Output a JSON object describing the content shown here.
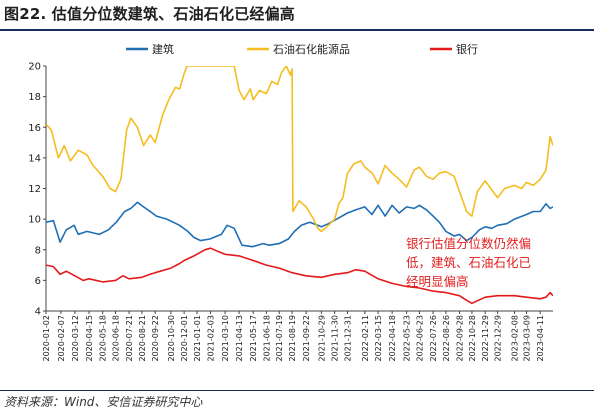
{
  "title": "图22. 估值分位数建筑、石油石化已经偏高",
  "source": "资料来源：Wind、安信证券研究中心",
  "colors": {
    "jianzhu": "#1f6fb5",
    "shiyou": "#f5bd1f",
    "yinhang": "#e31a1c",
    "rule": "#1a2a5a"
  },
  "chart_data": {
    "type": "line",
    "title": "",
    "xlabel": "",
    "ylabel": "",
    "ylim": [
      4,
      20
    ],
    "yticks": [
      "4",
      "6",
      "8",
      "10",
      "12",
      "14",
      "16",
      "18",
      "20"
    ],
    "yticks_num": [
      4,
      6,
      8,
      10,
      12,
      14,
      16,
      18,
      20
    ],
    "grid": false,
    "legend_position": "top",
    "x_start": "2020-01-02",
    "x_end": "2023-05-12",
    "xticks": [
      "2020-01-02",
      "2020-02-07",
      "2020-03-12",
      "2020-04-15",
      "2020-05-18",
      "2020-06-18",
      "2020-07-21",
      "2020-08-21",
      "2020-09-22",
      "2020-10-30",
      "2020-12-01",
      "2021-01-01",
      "2021-02-03",
      "2021-03-10",
      "2021-04-13",
      "2021-05-17",
      "2021-06-18",
      "2021-07-19",
      "2021-08-19",
      "2021-09-22",
      "2021-10-29",
      "2021-11-30",
      "2021-12-31",
      "2022-02-11",
      "2022-03-15",
      "2022-04-18",
      "2022-05-23",
      "2022-06-23",
      "2022-07-26",
      "2022-08-26",
      "2022-09-28",
      "2022-10-28",
      "2022-11-29",
      "2022-12-29",
      "2023-02-08",
      "2023-03-09",
      "2023-04-11"
    ],
    "annotation": [
      "银行估值分位数仍然偏",
      "低，建筑、石油石化已",
      "经明显偏高"
    ],
    "series": [
      {
        "name": "建筑",
        "color": "#1f6fb5",
        "points": [
          [
            "2020-01-02",
            9.8
          ],
          [
            "2020-01-20",
            9.9
          ],
          [
            "2020-02-05",
            8.5
          ],
          [
            "2020-02-20",
            9.3
          ],
          [
            "2020-03-10",
            9.6
          ],
          [
            "2020-03-20",
            9.0
          ],
          [
            "2020-04-10",
            9.2
          ],
          [
            "2020-05-10",
            9.0
          ],
          [
            "2020-06-01",
            9.3
          ],
          [
            "2020-06-20",
            9.8
          ],
          [
            "2020-07-10",
            10.5
          ],
          [
            "2020-07-25",
            10.7
          ],
          [
            "2020-08-10",
            11.1
          ],
          [
            "2020-08-25",
            10.8
          ],
          [
            "2020-09-10",
            10.5
          ],
          [
            "2020-09-25",
            10.2
          ],
          [
            "2020-10-20",
            10.0
          ],
          [
            "2020-11-20",
            9.6
          ],
          [
            "2020-12-10",
            9.2
          ],
          [
            "2020-12-25",
            8.8
          ],
          [
            "2021-01-10",
            8.6
          ],
          [
            "2021-02-01",
            8.7
          ],
          [
            "2021-03-01",
            9.0
          ],
          [
            "2021-03-15",
            9.6
          ],
          [
            "2021-04-01",
            9.4
          ],
          [
            "2021-04-20",
            8.3
          ],
          [
            "2021-05-15",
            8.2
          ],
          [
            "2021-06-10",
            8.4
          ],
          [
            "2021-06-25",
            8.3
          ],
          [
            "2021-07-19",
            8.4
          ],
          [
            "2021-08-10",
            8.7
          ],
          [
            "2021-08-25",
            9.2
          ],
          [
            "2021-09-10",
            9.6
          ],
          [
            "2021-10-01",
            9.8
          ],
          [
            "2021-10-29",
            9.5
          ],
          [
            "2021-11-15",
            9.7
          ],
          [
            "2021-12-05",
            10.0
          ],
          [
            "2021-12-31",
            10.4
          ],
          [
            "2022-01-20",
            10.6
          ],
          [
            "2022-02-11",
            10.8
          ],
          [
            "2022-02-28",
            10.3
          ],
          [
            "2022-03-15",
            10.9
          ],
          [
            "2022-04-01",
            10.2
          ],
          [
            "2022-04-18",
            10.9
          ],
          [
            "2022-05-05",
            10.4
          ],
          [
            "2022-05-23",
            10.8
          ],
          [
            "2022-06-10",
            10.7
          ],
          [
            "2022-06-23",
            10.9
          ],
          [
            "2022-07-10",
            10.6
          ],
          [
            "2022-07-26",
            10.2
          ],
          [
            "2022-08-10",
            9.8
          ],
          [
            "2022-08-26",
            9.2
          ],
          [
            "2022-09-15",
            8.9
          ],
          [
            "2022-09-28",
            9.0
          ],
          [
            "2022-10-15",
            8.6
          ],
          [
            "2022-10-28",
            8.8
          ],
          [
            "2022-11-15",
            9.3
          ],
          [
            "2022-11-29",
            9.5
          ],
          [
            "2022-12-15",
            9.4
          ],
          [
            "2022-12-29",
            9.6
          ],
          [
            "2023-01-20",
            9.7
          ],
          [
            "2023-02-08",
            10.0
          ],
          [
            "2023-03-09",
            10.3
          ],
          [
            "2023-03-25",
            10.5
          ],
          [
            "2023-04-11",
            10.5
          ],
          [
            "2023-04-25",
            11.0
          ],
          [
            "2023-05-05",
            10.7
          ],
          [
            "2023-05-12",
            10.8
          ]
        ]
      },
      {
        "name": "石油石化能源品",
        "color": "#f5bd1f",
        "points": [
          [
            "2020-01-02",
            16.2
          ],
          [
            "2020-01-15",
            15.8
          ],
          [
            "2020-02-01",
            14.0
          ],
          [
            "2020-02-15",
            14.8
          ],
          [
            "2020-03-01",
            13.8
          ],
          [
            "2020-03-20",
            14.5
          ],
          [
            "2020-04-10",
            14.2
          ],
          [
            "2020-04-25",
            13.5
          ],
          [
            "2020-05-18",
            12.8
          ],
          [
            "2020-06-05",
            12.0
          ],
          [
            "2020-06-18",
            11.8
          ],
          [
            "2020-07-01",
            12.6
          ],
          [
            "2020-07-15",
            15.8
          ],
          [
            "2020-07-25",
            16.6
          ],
          [
            "2020-08-10",
            16.0
          ],
          [
            "2020-08-25",
            14.8
          ],
          [
            "2020-09-10",
            15.5
          ],
          [
            "2020-09-22",
            15.0
          ],
          [
            "2020-10-10",
            16.8
          ],
          [
            "2020-10-25",
            17.8
          ],
          [
            "2020-11-10",
            18.6
          ],
          [
            "2020-11-20",
            18.5
          ],
          [
            "2020-12-01",
            19.5
          ],
          [
            "2020-12-08",
            20.0
          ],
          [
            "2021-02-20",
            20.0
          ],
          [
            "2021-03-05",
            20.0
          ],
          [
            "2021-04-01",
            20.0
          ],
          [
            "2021-04-13",
            18.4
          ],
          [
            "2021-04-25",
            17.8
          ],
          [
            "2021-05-10",
            18.5
          ],
          [
            "2021-05-17",
            17.8
          ],
          [
            "2021-06-01",
            18.4
          ],
          [
            "2021-06-18",
            18.2
          ],
          [
            "2021-07-01",
            19.0
          ],
          [
            "2021-07-15",
            18.8
          ],
          [
            "2021-07-25",
            19.6
          ],
          [
            "2021-08-05",
            20.0
          ],
          [
            "2021-08-15",
            19.4
          ],
          [
            "2021-08-19",
            19.8
          ],
          [
            "2021-08-21",
            10.5
          ],
          [
            "2021-09-05",
            11.2
          ],
          [
            "2021-09-22",
            10.8
          ],
          [
            "2021-10-10",
            10.0
          ],
          [
            "2021-10-20",
            9.4
          ],
          [
            "2021-10-29",
            9.2
          ],
          [
            "2021-11-15",
            9.6
          ],
          [
            "2021-11-30",
            10.0
          ],
          [
            "2021-12-10",
            11.0
          ],
          [
            "2021-12-20",
            11.4
          ],
          [
            "2021-12-31",
            13.0
          ],
          [
            "2022-01-15",
            13.6
          ],
          [
            "2022-02-01",
            13.8
          ],
          [
            "2022-02-11",
            13.4
          ],
          [
            "2022-03-01",
            13.0
          ],
          [
            "2022-03-15",
            12.3
          ],
          [
            "2022-04-01",
            13.5
          ],
          [
            "2022-04-18",
            13.0
          ],
          [
            "2022-05-05",
            12.6
          ],
          [
            "2022-05-23",
            12.1
          ],
          [
            "2022-06-10",
            13.2
          ],
          [
            "2022-06-23",
            13.4
          ],
          [
            "2022-07-10",
            12.8
          ],
          [
            "2022-07-26",
            12.6
          ],
          [
            "2022-08-10",
            13.0
          ],
          [
            "2022-08-26",
            13.1
          ],
          [
            "2022-09-15",
            12.8
          ],
          [
            "2022-09-28",
            11.8
          ],
          [
            "2022-10-15",
            10.5
          ],
          [
            "2022-10-28",
            10.2
          ],
          [
            "2022-11-10",
            11.8
          ],
          [
            "2022-11-29",
            12.5
          ],
          [
            "2022-12-15",
            11.9
          ],
          [
            "2022-12-29",
            11.4
          ],
          [
            "2023-01-15",
            12.0
          ],
          [
            "2023-02-08",
            12.2
          ],
          [
            "2023-02-25",
            12.0
          ],
          [
            "2023-03-09",
            12.4
          ],
          [
            "2023-03-25",
            12.2
          ],
          [
            "2023-04-11",
            12.6
          ],
          [
            "2023-04-25",
            13.2
          ],
          [
            "2023-05-05",
            15.4
          ],
          [
            "2023-05-12",
            14.8
          ]
        ]
      },
      {
        "name": "银行",
        "color": "#e31a1c",
        "points": [
          [
            "2020-01-02",
            7.0
          ],
          [
            "2020-01-20",
            6.9
          ],
          [
            "2020-02-05",
            6.4
          ],
          [
            "2020-02-20",
            6.6
          ],
          [
            "2020-03-12",
            6.3
          ],
          [
            "2020-04-01",
            6.0
          ],
          [
            "2020-04-15",
            6.1
          ],
          [
            "2020-05-18",
            5.9
          ],
          [
            "2020-06-18",
            6.0
          ],
          [
            "2020-07-06",
            6.3
          ],
          [
            "2020-07-21",
            6.1
          ],
          [
            "2020-08-21",
            6.2
          ],
          [
            "2020-09-10",
            6.4
          ],
          [
            "2020-09-22",
            6.5
          ],
          [
            "2020-10-30",
            6.8
          ],
          [
            "2020-11-20",
            7.1
          ],
          [
            "2020-12-01",
            7.3
          ],
          [
            "2020-12-25",
            7.6
          ],
          [
            "2021-01-01",
            7.7
          ],
          [
            "2021-01-20",
            8.0
          ],
          [
            "2021-02-03",
            8.1
          ],
          [
            "2021-02-20",
            7.9
          ],
          [
            "2021-03-10",
            7.7
          ],
          [
            "2021-04-13",
            7.6
          ],
          [
            "2021-05-17",
            7.3
          ],
          [
            "2021-06-18",
            7.0
          ],
          [
            "2021-07-19",
            6.8
          ],
          [
            "2021-08-19",
            6.5
          ],
          [
            "2021-09-22",
            6.3
          ],
          [
            "2021-10-29",
            6.2
          ],
          [
            "2021-11-30",
            6.4
          ],
          [
            "2021-12-31",
            6.5
          ],
          [
            "2022-01-20",
            6.7
          ],
          [
            "2022-02-11",
            6.6
          ],
          [
            "2022-03-15",
            6.1
          ],
          [
            "2022-04-18",
            5.8
          ],
          [
            "2022-05-23",
            5.6
          ],
          [
            "2022-06-23",
            5.5
          ],
          [
            "2022-07-26",
            5.3
          ],
          [
            "2022-08-26",
            5.2
          ],
          [
            "2022-09-28",
            5.0
          ],
          [
            "2022-10-15",
            4.7
          ],
          [
            "2022-10-28",
            4.5
          ],
          [
            "2022-11-29",
            4.9
          ],
          [
            "2022-12-29",
            5.0
          ],
          [
            "2023-02-08",
            5.0
          ],
          [
            "2023-03-09",
            4.9
          ],
          [
            "2023-04-11",
            4.8
          ],
          [
            "2023-04-25",
            4.9
          ],
          [
            "2023-05-05",
            5.2
          ],
          [
            "2023-05-12",
            5.0
          ]
        ]
      }
    ]
  }
}
